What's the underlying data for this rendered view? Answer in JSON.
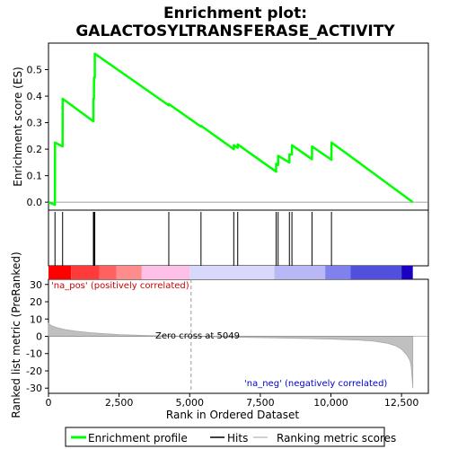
{
  "chart_data": {
    "type": "line",
    "title_line1": "Enrichment plot:",
    "title_line2": "GALACTOSYLTRANSFERASE_ACTIVITY",
    "top_panel": {
      "ylabel": "Enrichment score (ES)",
      "ylim": [
        -0.03,
        0.6
      ],
      "yticks": [
        "0.0",
        "0.1",
        "0.2",
        "0.3",
        "0.4",
        "0.5"
      ],
      "ytick_values": [
        0.0,
        0.1,
        0.2,
        0.3,
        0.4,
        0.5
      ],
      "series": [
        {
          "name": "Enrichment profile",
          "color": "#00ff00",
          "x": [
            0,
            230,
            231,
            500,
            501,
            1590,
            1591,
            1610,
            1611,
            1640,
            1641,
            4260,
            4261,
            5400,
            5401,
            6560,
            6561,
            6700,
            6701,
            8060,
            8061,
            8130,
            8131,
            8530,
            8531,
            8620,
            8621,
            9330,
            9331,
            10020,
            10021,
            12900
          ],
          "y": [
            0.0,
            -0.01,
            0.225,
            0.21,
            0.39,
            0.305,
            0.39,
            0.39,
            0.47,
            0.47,
            0.56,
            0.365,
            0.37,
            0.285,
            0.288,
            0.2,
            0.215,
            0.205,
            0.218,
            0.115,
            0.145,
            0.14,
            0.175,
            0.15,
            0.18,
            0.18,
            0.215,
            0.162,
            0.21,
            0.16,
            0.225,
            0.0
          ]
        }
      ]
    },
    "hits": [
      230,
      500,
      1590,
      1610,
      1640,
      4260,
      5400,
      6560,
      6700,
      8060,
      8130,
      8530,
      8620,
      9330,
      10020
    ],
    "colorbar": [
      {
        "from": 0,
        "to": 800,
        "color": "#ff0000"
      },
      {
        "from": 800,
        "to": 1800,
        "color": "#ff3a3a"
      },
      {
        "from": 1800,
        "to": 2400,
        "color": "#ff6060"
      },
      {
        "from": 2400,
        "to": 3300,
        "color": "#ff8c8c"
      },
      {
        "from": 3300,
        "to": 5000,
        "color": "#ffc0e8"
      },
      {
        "from": 5000,
        "to": 8000,
        "color": "#d8d8fa"
      },
      {
        "from": 8000,
        "to": 9800,
        "color": "#b8b8f6"
      },
      {
        "from": 9800,
        "to": 10700,
        "color": "#8080ee"
      },
      {
        "from": 10700,
        "to": 12500,
        "color": "#5050dd"
      },
      {
        "from": 12500,
        "to": 12900,
        "color": "#1a00c0"
      }
    ],
    "bottom_panel": {
      "ylabel": "Ranked list metric (PreRanked)",
      "ylim": [
        -33,
        33
      ],
      "yticks": [
        "30",
        "20",
        "10",
        "0",
        "-10",
        "-20",
        "-30"
      ],
      "ytick_values": [
        30,
        20,
        10,
        0,
        -10,
        -20,
        -30
      ],
      "metric_x": [
        0,
        100,
        300,
        600,
        1000,
        1500,
        2000,
        2500,
        3000,
        3500,
        4000,
        4500,
        5049,
        6000,
        7000,
        8000,
        9000,
        10000,
        11000,
        11500,
        12000,
        12300,
        12500,
        12700,
        12800,
        12850,
        12900
      ],
      "metric_y": [
        7.5,
        6.2,
        5.0,
        3.8,
        2.9,
        2.1,
        1.5,
        1.0,
        0.7,
        0.45,
        0.25,
        0.1,
        0.0,
        -0.3,
        -0.6,
        -0.9,
        -1.2,
        -1.6,
        -2.2,
        -2.8,
        -4.0,
        -5.5,
        -7.5,
        -11,
        -14,
        -18,
        -30
      ],
      "pos_label": "'na_pos' (positively correlated)",
      "neg_label": "'na_neg' (negatively correlated)",
      "zero_cross_label": "Zero cross at 5049",
      "zero_cross": 5049
    },
    "xaxis": {
      "label": "Rank in Ordered Dataset",
      "xlim": [
        0,
        13450
      ],
      "ticks": [
        "0",
        "2,500",
        "5,000",
        "7,500",
        "10,000",
        "12,500"
      ],
      "tick_values": [
        0,
        2500,
        5000,
        7500,
        10000,
        12500
      ]
    },
    "legend": {
      "placement": "bottom",
      "items": [
        {
          "label": "Enrichment profile",
          "color": "#00ff00"
        },
        {
          "label": "Hits",
          "color": "#000000"
        },
        {
          "label": "Ranking metric scores",
          "color": "#c0c0c0"
        }
      ]
    }
  }
}
